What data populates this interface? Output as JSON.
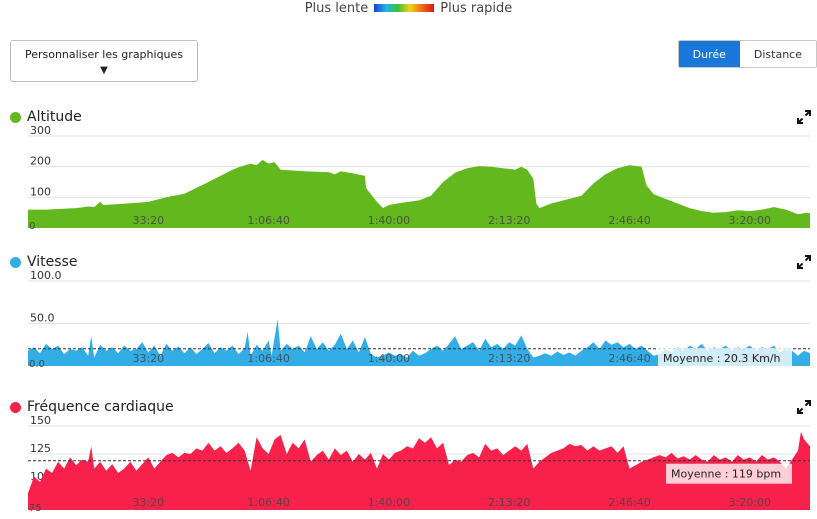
{
  "speed_legend": {
    "slow_label": "Plus lente",
    "fast_label": "Plus rapide"
  },
  "controls": {
    "customize_label": "Personnaliser les graphiques",
    "customize_chevron": "▼",
    "tabs": [
      {
        "label": "Durée",
        "active": true
      },
      {
        "label": "Distance",
        "active": false
      }
    ]
  },
  "chart_data": [
    {
      "type": "area",
      "title": "Altitude",
      "color": "#62b81d",
      "icon": "expand-icon",
      "xlabel": "",
      "ylabel": "",
      "xlim": [
        0,
        13000
      ],
      "ylim": [
        0,
        300
      ],
      "y_ticks": [
        300,
        200,
        100
      ],
      "y_tick_labels": [
        "300",
        "200",
        "100"
      ],
      "zero_label": "0",
      "x_ticks": [
        2000,
        4000,
        6000,
        8000,
        10000,
        12000
      ],
      "x_tick_labels": [
        "33:20",
        "1:06:40",
        "1:40:00",
        "2:13:20",
        "2:46:40",
        "3:20:00"
      ],
      "grid": true,
      "points": [
        [
          0,
          60
        ],
        [
          300,
          60
        ],
        [
          800,
          65
        ],
        [
          1000,
          70
        ],
        [
          1100,
          68
        ],
        [
          1200,
          85
        ],
        [
          1250,
          75
        ],
        [
          1500,
          78
        ],
        [
          2000,
          85
        ],
        [
          2300,
          100
        ],
        [
          2600,
          112
        ],
        [
          3000,
          150
        ],
        [
          3400,
          190
        ],
        [
          3500,
          198
        ],
        [
          3700,
          210
        ],
        [
          3800,
          205
        ],
        [
          3900,
          222
        ],
        [
          4000,
          210
        ],
        [
          4100,
          215
        ],
        [
          4200,
          190
        ],
        [
          4600,
          185
        ],
        [
          5000,
          182
        ],
        [
          5100,
          175
        ],
        [
          5200,
          185
        ],
        [
          5400,
          178
        ],
        [
          5600,
          170
        ],
        [
          5620,
          130
        ],
        [
          5800,
          85
        ],
        [
          5900,
          65
        ],
        [
          6000,
          75
        ],
        [
          6200,
          82
        ],
        [
          6500,
          90
        ],
        [
          6700,
          105
        ],
        [
          6900,
          150
        ],
        [
          7100,
          180
        ],
        [
          7300,
          195
        ],
        [
          7500,
          202
        ],
        [
          7700,
          200
        ],
        [
          7900,
          195
        ],
        [
          8100,
          190
        ],
        [
          8200,
          200
        ],
        [
          8300,
          190
        ],
        [
          8400,
          160
        ],
        [
          8450,
          80
        ],
        [
          8500,
          65
        ],
        [
          8700,
          80
        ],
        [
          8900,
          90
        ],
        [
          9200,
          105
        ],
        [
          9400,
          145
        ],
        [
          9600,
          175
        ],
        [
          9800,
          195
        ],
        [
          10000,
          205
        ],
        [
          10200,
          200
        ],
        [
          10280,
          140
        ],
        [
          10400,
          110
        ],
        [
          10600,
          95
        ],
        [
          10800,
          80
        ],
        [
          11000,
          65
        ],
        [
          11200,
          55
        ],
        [
          11400,
          50
        ],
        [
          11600,
          52
        ],
        [
          11800,
          58
        ],
        [
          12000,
          55
        ],
        [
          12200,
          60
        ],
        [
          12400,
          68
        ],
        [
          12600,
          60
        ],
        [
          12800,
          45
        ],
        [
          12950,
          50
        ],
        [
          13000,
          48
        ]
      ]
    },
    {
      "type": "area",
      "title": "Vitesse",
      "color": "#32ade6",
      "icon": "expand-icon",
      "xlabel": "",
      "ylabel": "",
      "xlim": [
        0,
        13000
      ],
      "ylim": [
        0,
        100
      ],
      "y_ticks": [
        100,
        50
      ],
      "y_tick_labels": [
        "100.0",
        "50.0"
      ],
      "zero_label": "0.0",
      "x_ticks": [
        2000,
        4000,
        6000,
        8000,
        10000,
        12000
      ],
      "x_tick_labels": [
        "33:20",
        "1:06:40",
        "1:40:00",
        "2:13:20",
        "2:46:40",
        "3:20:00"
      ],
      "grid": true,
      "average": 20.3,
      "average_label": "Moyenne : 20.3 Km/h",
      "points": [
        [
          0,
          18
        ],
        [
          100,
          22
        ],
        [
          200,
          15
        ],
        [
          300,
          26
        ],
        [
          400,
          20
        ],
        [
          500,
          24
        ],
        [
          600,
          14
        ],
        [
          700,
          20
        ],
        [
          800,
          18
        ],
        [
          900,
          22
        ],
        [
          1000,
          12
        ],
        [
          1050,
          35
        ],
        [
          1100,
          10
        ],
        [
          1200,
          25
        ],
        [
          1300,
          18
        ],
        [
          1400,
          22
        ],
        [
          1500,
          15
        ],
        [
          1600,
          24
        ],
        [
          1700,
          18
        ],
        [
          1800,
          20
        ],
        [
          1900,
          28
        ],
        [
          2000,
          16
        ],
        [
          2100,
          24
        ],
        [
          2200,
          12
        ],
        [
          2300,
          26
        ],
        [
          2400,
          18
        ],
        [
          2500,
          23
        ],
        [
          2600,
          15
        ],
        [
          2700,
          22
        ],
        [
          2800,
          14
        ],
        [
          2900,
          20
        ],
        [
          3000,
          27
        ],
        [
          3100,
          15
        ],
        [
          3200,
          22
        ],
        [
          3300,
          18
        ],
        [
          3400,
          24
        ],
        [
          3500,
          14
        ],
        [
          3600,
          21
        ],
        [
          3650,
          40
        ],
        [
          3700,
          12
        ],
        [
          3800,
          25
        ],
        [
          3900,
          18
        ],
        [
          4000,
          30
        ],
        [
          4050,
          12
        ],
        [
          4150,
          55
        ],
        [
          4200,
          18
        ],
        [
          4300,
          26
        ],
        [
          4400,
          20
        ],
        [
          4500,
          24
        ],
        [
          4600,
          16
        ],
        [
          4700,
          35
        ],
        [
          4800,
          20
        ],
        [
          4900,
          28
        ],
        [
          5000,
          18
        ],
        [
          5100,
          25
        ],
        [
          5200,
          38
        ],
        [
          5300,
          20
        ],
        [
          5400,
          30
        ],
        [
          5500,
          16
        ],
        [
          5600,
          34
        ],
        [
          5700,
          14
        ],
        [
          5800,
          10
        ],
        [
          5900,
          12
        ],
        [
          6000,
          16
        ],
        [
          6100,
          12
        ],
        [
          6200,
          14
        ],
        [
          6300,
          10
        ],
        [
          6400,
          18
        ],
        [
          6500,
          12
        ],
        [
          6600,
          15
        ],
        [
          6700,
          20
        ],
        [
          6800,
          24
        ],
        [
          6900,
          18
        ],
        [
          7000,
          26
        ],
        [
          7100,
          35
        ],
        [
          7200,
          20
        ],
        [
          7300,
          24
        ],
        [
          7400,
          28
        ],
        [
          7500,
          18
        ],
        [
          7600,
          32
        ],
        [
          7700,
          22
        ],
        [
          7800,
          26
        ],
        [
          7900,
          20
        ],
        [
          8000,
          28
        ],
        [
          8100,
          24
        ],
        [
          8200,
          36
        ],
        [
          8300,
          20
        ],
        [
          8400,
          10
        ],
        [
          8500,
          12
        ],
        [
          8600,
          15
        ],
        [
          8700,
          12
        ],
        [
          8800,
          17
        ],
        [
          8900,
          13
        ],
        [
          9000,
          16
        ],
        [
          9100,
          12
        ],
        [
          9200,
          18
        ],
        [
          9300,
          22
        ],
        [
          9400,
          28
        ],
        [
          9500,
          20
        ],
        [
          9600,
          30
        ],
        [
          9700,
          25
        ],
        [
          9800,
          28
        ],
        [
          9900,
          22
        ],
        [
          10000,
          26
        ],
        [
          10100,
          20
        ],
        [
          10200,
          24
        ],
        [
          10300,
          18
        ],
        [
          10400,
          12
        ],
        [
          10500,
          14
        ],
        [
          10600,
          20
        ],
        [
          10700,
          16
        ],
        [
          10800,
          22
        ],
        [
          10900,
          18
        ],
        [
          11000,
          24
        ],
        [
          11100,
          20
        ],
        [
          11200,
          26
        ],
        [
          11300,
          18
        ],
        [
          11400,
          22
        ],
        [
          11500,
          20
        ],
        [
          11600,
          24
        ],
        [
          11700,
          18
        ],
        [
          11800,
          22
        ],
        [
          11900,
          20
        ],
        [
          12000,
          24
        ],
        [
          12100,
          18
        ],
        [
          12200,
          22
        ],
        [
          12300,
          20
        ],
        [
          12400,
          24
        ],
        [
          12500,
          16
        ],
        [
          12600,
          20
        ],
        [
          12700,
          18
        ],
        [
          12800,
          12
        ],
        [
          12900,
          18
        ],
        [
          13000,
          15
        ]
      ]
    },
    {
      "type": "area",
      "title": "Fréquence cardiaque",
      "color": "#f7214c",
      "icon": "expand-icon",
      "xlabel": "",
      "ylabel": "",
      "xlim": [
        0,
        13000
      ],
      "ylim": [
        75,
        150
      ],
      "y_ticks": [
        150,
        125,
        100
      ],
      "y_tick_labels": [
        "150",
        "125",
        "100"
      ],
      "zero_label": "75",
      "x_ticks": [
        2000,
        4000,
        6000,
        8000,
        10000,
        12000
      ],
      "x_tick_labels": [
        "33:20",
        "1:06:40",
        "1:40:00",
        "2:13:20",
        "2:46:40",
        "3:20:00"
      ],
      "grid": true,
      "average": 119,
      "average_label": "Moyenne : 119 bpm",
      "points": [
        [
          0,
          90
        ],
        [
          100,
          105
        ],
        [
          200,
          100
        ],
        [
          300,
          112
        ],
        [
          400,
          108
        ],
        [
          500,
          118
        ],
        [
          600,
          112
        ],
        [
          700,
          122
        ],
        [
          800,
          115
        ],
        [
          900,
          120
        ],
        [
          1000,
          118
        ],
        [
          1050,
          132
        ],
        [
          1100,
          112
        ],
        [
          1200,
          118
        ],
        [
          1300,
          110
        ],
        [
          1400,
          116
        ],
        [
          1500,
          108
        ],
        [
          1600,
          112
        ],
        [
          1700,
          118
        ],
        [
          1800,
          110
        ],
        [
          1900,
          116
        ],
        [
          2000,
          122
        ],
        [
          2100,
          112
        ],
        [
          2200,
          118
        ],
        [
          2300,
          124
        ],
        [
          2400,
          126
        ],
        [
          2500,
          122
        ],
        [
          2600,
          126
        ],
        [
          2700,
          125
        ],
        [
          2800,
          130
        ],
        [
          2900,
          128
        ],
        [
          3000,
          135
        ],
        [
          3100,
          128
        ],
        [
          3200,
          132
        ],
        [
          3300,
          126
        ],
        [
          3400,
          130
        ],
        [
          3500,
          135
        ],
        [
          3600,
          128
        ],
        [
          3700,
          110
        ],
        [
          3800,
          140
        ],
        [
          3900,
          130
        ],
        [
          4000,
          125
        ],
        [
          4100,
          138
        ],
        [
          4200,
          142
        ],
        [
          4300,
          125
        ],
        [
          4400,
          135
        ],
        [
          4500,
          130
        ],
        [
          4600,
          138
        ],
        [
          4700,
          118
        ],
        [
          4800,
          124
        ],
        [
          4900,
          128
        ],
        [
          5000,
          120
        ],
        [
          5100,
          130
        ],
        [
          5200,
          124
        ],
        [
          5300,
          128
        ],
        [
          5400,
          118
        ],
        [
          5500,
          125
        ],
        [
          5600,
          120
        ],
        [
          5700,
          126
        ],
        [
          5800,
          112
        ],
        [
          5900,
          125
        ],
        [
          6000,
          120
        ],
        [
          6100,
          126
        ],
        [
          6200,
          128
        ],
        [
          6300,
          132
        ],
        [
          6400,
          130
        ],
        [
          6500,
          139
        ],
        [
          6600,
          135
        ],
        [
          6700,
          140
        ],
        [
          6800,
          130
        ],
        [
          6900,
          135
        ],
        [
          7000,
          115
        ],
        [
          7100,
          120
        ],
        [
          7200,
          118
        ],
        [
          7300,
          124
        ],
        [
          7400,
          126
        ],
        [
          7500,
          122
        ],
        [
          7600,
          134
        ],
        [
          7700,
          128
        ],
        [
          7800,
          130
        ],
        [
          7900,
          124
        ],
        [
          8000,
          128
        ],
        [
          8100,
          132
        ],
        [
          8200,
          128
        ],
        [
          8300,
          134
        ],
        [
          8400,
          112
        ],
        [
          8500,
          118
        ],
        [
          8600,
          122
        ],
        [
          8700,
          126
        ],
        [
          8800,
          128
        ],
        [
          8900,
          130
        ],
        [
          9000,
          134
        ],
        [
          9100,
          132
        ],
        [
          9200,
          133
        ],
        [
          9300,
          128
        ],
        [
          9400,
          132
        ],
        [
          9500,
          128
        ],
        [
          9600,
          130
        ],
        [
          9700,
          132
        ],
        [
          9800,
          126
        ],
        [
          9900,
          132
        ],
        [
          10000,
          112
        ],
        [
          10100,
          115
        ],
        [
          10200,
          118
        ],
        [
          10300,
          120
        ],
        [
          10400,
          122
        ],
        [
          10500,
          124
        ],
        [
          10600,
          122
        ],
        [
          10700,
          126
        ],
        [
          10800,
          121
        ],
        [
          10900,
          123
        ],
        [
          11000,
          120
        ],
        [
          11100,
          124
        ],
        [
          11200,
          120
        ],
        [
          11300,
          118
        ],
        [
          11400,
          124
        ],
        [
          11500,
          120
        ],
        [
          11600,
          122
        ],
        [
          11700,
          118
        ],
        [
          11800,
          124
        ],
        [
          11900,
          120
        ],
        [
          12000,
          122
        ],
        [
          12100,
          118
        ],
        [
          12200,
          124
        ],
        [
          12300,
          120
        ],
        [
          12400,
          122
        ],
        [
          12500,
          118
        ],
        [
          12600,
          112
        ],
        [
          12700,
          120
        ],
        [
          12800,
          128
        ],
        [
          12850,
          145
        ],
        [
          12900,
          138
        ],
        [
          13000,
          132
        ]
      ]
    }
  ]
}
